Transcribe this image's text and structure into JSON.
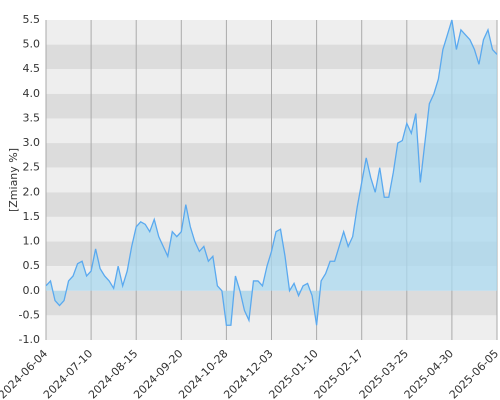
{
  "chart_data": {
    "type": "area",
    "y_label": "[Zmiany %]",
    "categories": [
      "2024-06-04",
      null,
      null,
      null,
      null,
      null,
      null,
      null,
      null,
      null,
      "2024-07-10",
      null,
      null,
      null,
      null,
      null,
      null,
      null,
      null,
      null,
      "2024-08-15",
      null,
      null,
      null,
      null,
      null,
      null,
      null,
      null,
      null,
      "2024-09-20",
      null,
      null,
      null,
      null,
      null,
      null,
      null,
      null,
      null,
      "2024-10-28",
      null,
      null,
      null,
      null,
      null,
      null,
      null,
      null,
      null,
      "2024-12-03",
      null,
      null,
      null,
      null,
      null,
      null,
      null,
      null,
      null,
      "2025-01-10",
      null,
      null,
      null,
      null,
      null,
      null,
      null,
      null,
      null,
      "2025-02-17",
      null,
      null,
      null,
      null,
      null,
      null,
      null,
      null,
      null,
      "2025-03-25",
      null,
      null,
      null,
      null,
      null,
      null,
      null,
      null,
      null,
      "2025-04-30",
      null,
      null,
      null,
      null,
      null,
      null,
      null,
      null,
      null,
      "2025-06-05"
    ],
    "values": [
      0.1,
      0.2,
      -0.2,
      -0.3,
      -0.2,
      0.2,
      0.3,
      0.55,
      0.6,
      0.3,
      0.4,
      0.85,
      0.45,
      0.3,
      0.2,
      0.05,
      0.5,
      0.1,
      0.4,
      0.9,
      1.3,
      1.4,
      1.35,
      1.2,
      1.45,
      1.1,
      0.9,
      0.7,
      1.2,
      1.1,
      1.2,
      1.75,
      1.3,
      1.0,
      0.8,
      0.9,
      0.6,
      0.7,
      0.1,
      0.0,
      -0.7,
      -0.7,
      0.3,
      0.0,
      -0.4,
      -0.6,
      0.2,
      0.2,
      0.1,
      0.5,
      0.8,
      1.2,
      1.25,
      0.7,
      0.0,
      0.15,
      -0.1,
      0.1,
      0.15,
      -0.1,
      -0.7,
      0.2,
      0.35,
      0.6,
      0.6,
      0.9,
      1.2,
      0.9,
      1.1,
      1.7,
      2.2,
      2.7,
      2.3,
      2.0,
      2.5,
      1.9,
      1.9,
      2.4,
      3.0,
      3.05,
      3.4,
      3.2,
      3.6,
      2.2,
      3.0,
      3.8,
      4.0,
      4.3,
      4.9,
      5.2,
      5.5,
      4.9,
      5.3,
      5.2,
      5.1,
      4.9,
      4.6,
      5.1,
      5.3,
      4.9,
      4.8
    ],
    "color": "#5aa9ef",
    "fill_color": "#a9d8ef",
    "band_colors": [
      "#eeeeee",
      "#dcdcdc"
    ],
    "ylim": [
      -1.0,
      5.5
    ],
    "yticks": [
      {
        "value": 5.5,
        "label": "5.5"
      },
      {
        "value": 5,
        "label": "5.0"
      },
      {
        "value": 4.5,
        "label": "4.5"
      },
      {
        "value": 4,
        "label": "4.0"
      },
      {
        "value": 3.5,
        "label": "3.5"
      },
      {
        "value": 3,
        "label": "3.0"
      },
      {
        "value": 2.5,
        "label": "2.5"
      },
      {
        "value": 2,
        "label": "2.0"
      },
      {
        "value": 1.5,
        "label": "1.5"
      },
      {
        "value": 1,
        "label": "1.0"
      },
      {
        "value": 0.5,
        "label": "0.5"
      },
      {
        "value": 0,
        "label": "0.0"
      },
      {
        "value": -0.5,
        "label": "-0.5"
      },
      {
        "value": -1,
        "label": "-1.0"
      }
    ],
    "grid": true
  }
}
